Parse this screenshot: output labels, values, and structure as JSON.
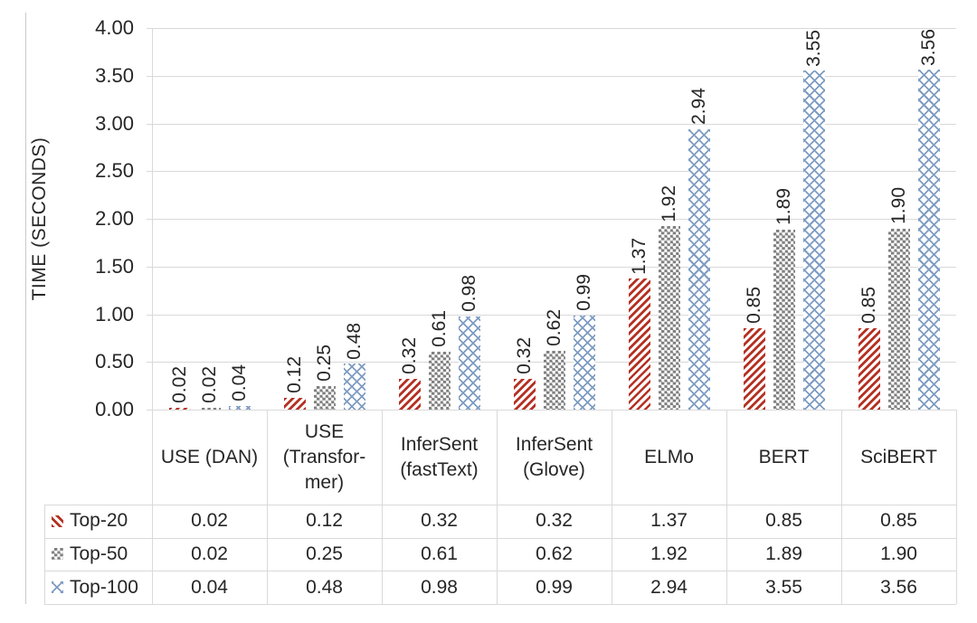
{
  "chart_data": {
    "type": "bar",
    "title": "",
    "ylabel": "TIME (SECONDS)",
    "categories": [
      "USE (DAN)",
      "USE (Transformer)",
      "InferSent (fastText)",
      "InferSent (Glove)",
      "ELMo",
      "BERT",
      "SciBERT"
    ],
    "categories_display": [
      [
        "USE (DAN)"
      ],
      [
        "USE",
        "(Transfor-",
        "mer)"
      ],
      [
        "InferSent",
        "(fastText)"
      ],
      [
        "InferSent",
        "(Glove)"
      ],
      [
        "ELMo"
      ],
      [
        "BERT"
      ],
      [
        "SciBERT"
      ]
    ],
    "series": [
      {
        "name": "Top-20",
        "pattern": "diagonal-stripes",
        "color": "#B53123",
        "values": [
          "0.02",
          "0.12",
          "0.32",
          "0.32",
          "1.37",
          "0.85",
          "0.85"
        ]
      },
      {
        "name": "Top-50",
        "pattern": "checkerboard",
        "color": "#7F7F7F",
        "values": [
          "0.02",
          "0.25",
          "0.61",
          "0.62",
          "1.92",
          "1.89",
          "1.90"
        ]
      },
      {
        "name": "Top-100",
        "pattern": "diamond-crosshatch",
        "color": "#7E9CC2",
        "values": [
          "0.04",
          "0.48",
          "0.98",
          "0.99",
          "2.94",
          "3.55",
          "3.56"
        ]
      }
    ],
    "y_ticks": [
      "4.00",
      "3.50",
      "3.00",
      "2.50",
      "2.00",
      "1.50",
      "1.00",
      "0.50",
      "0.00"
    ],
    "ylim": [
      0,
      4
    ],
    "grid": true,
    "legend_position": "table-rows-left",
    "gridline_color": "#D9D9D9",
    "text_color": "#262626"
  }
}
